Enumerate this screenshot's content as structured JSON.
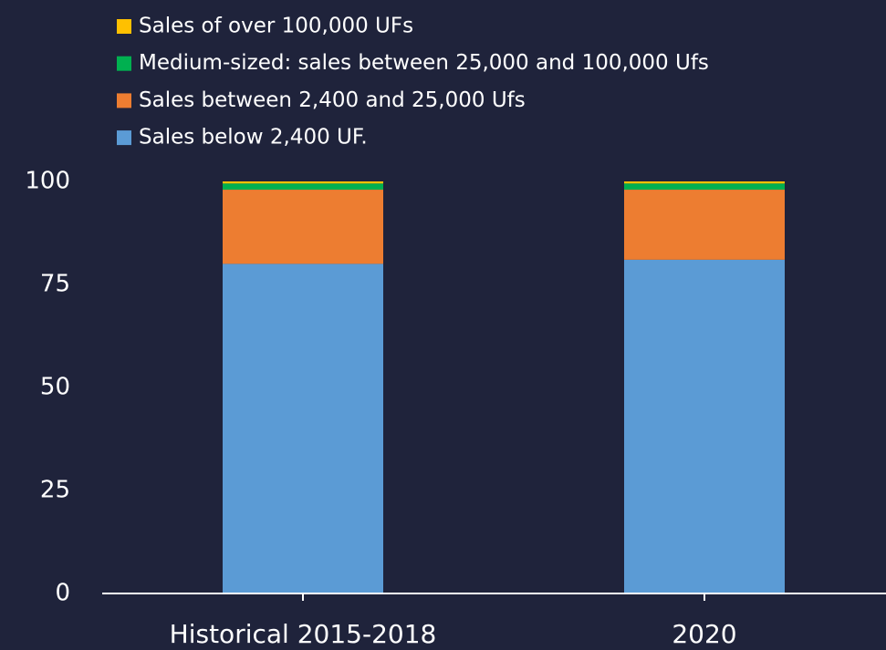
{
  "chart_data": {
    "type": "stacked_bar",
    "categories": [
      "Historical 2015-2018",
      "2020"
    ],
    "series": [
      {
        "name": "Sales below 2,400 UF.",
        "color": "#5b9bd5",
        "values": [
          80,
          81
        ]
      },
      {
        "name": "Sales between 2,400 and 25,000 Ufs",
        "color": "#ed7d31",
        "values": [
          18,
          17
        ]
      },
      {
        "name": "Medium-sized: sales between 25,000 and 100,000 Ufs",
        "color": "#00b050",
        "values": [
          1.5,
          1.5
        ]
      },
      {
        "name": "Sales of over 100,000 UFs",
        "color": "#ffc000",
        "values": [
          0.5,
          0.5
        ]
      }
    ],
    "ylim": [
      0,
      100
    ],
    "yticks": [
      0,
      25,
      50,
      75,
      100
    ],
    "grid": false
  }
}
